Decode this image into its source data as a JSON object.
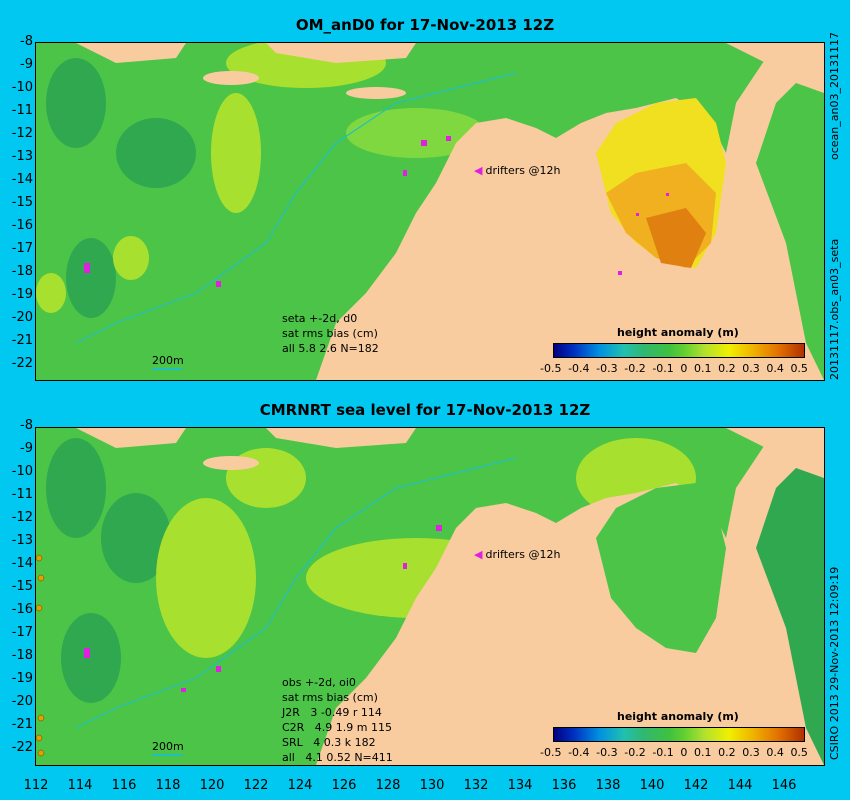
{
  "top": {
    "title": "OM_anD0 for 17-Nov-2013 12Z",
    "side_label": "20131117.obs_an03_seta",
    "side_label_top": "ocean_an03_20131117",
    "drifters": "drifters @12h",
    "stats": [
      "seta +-2d, d0",
      "sat rms bias (cm)",
      "all 5.8 2.6 N=182"
    ],
    "scale": "200m",
    "legend_title": "height anomaly (m)"
  },
  "bottom": {
    "title": "CMRNRT sea level  for 17-Nov-2013 12Z",
    "side_label": "CSIRO 2013   29-Nov-2013 12:09:19",
    "drifters": "drifters @12h",
    "stats": [
      "obs +-2d, oi0",
      "sat rms bias (cm)",
      "J2R   3 -0.49 r 114",
      "C2R   4.9 1.9 m 115",
      "SRL   4 0.3 k 182",
      "all   4.1 0.52 N=411"
    ],
    "scale": "200m",
    "legend_title": "height anomaly (m)"
  },
  "legend_ticks": [
    "-0.5",
    "-0.4",
    "-0.3",
    "-0.2",
    "-0.1",
    "0",
    "0.1",
    "0.2",
    "0.3",
    "0.4",
    "0.5"
  ],
  "y_ticks": [
    "-8",
    "-9",
    "-10",
    "-11",
    "-12",
    "-13",
    "-14",
    "-15",
    "-16",
    "-17",
    "-18",
    "-19",
    "-20",
    "-21",
    "-22"
  ],
  "x_ticks": [
    "112",
    "114",
    "116",
    "118",
    "120",
    "122",
    "124",
    "126",
    "128",
    "130",
    "132",
    "134",
    "136",
    "138",
    "140",
    "142",
    "144",
    "146"
  ],
  "colors": {
    "background": "#00c8f0",
    "land": "#f9cca0",
    "ocean_green": "#40c040",
    "drifter": "#e020e0",
    "bathymetry": "#20c0c0"
  }
}
